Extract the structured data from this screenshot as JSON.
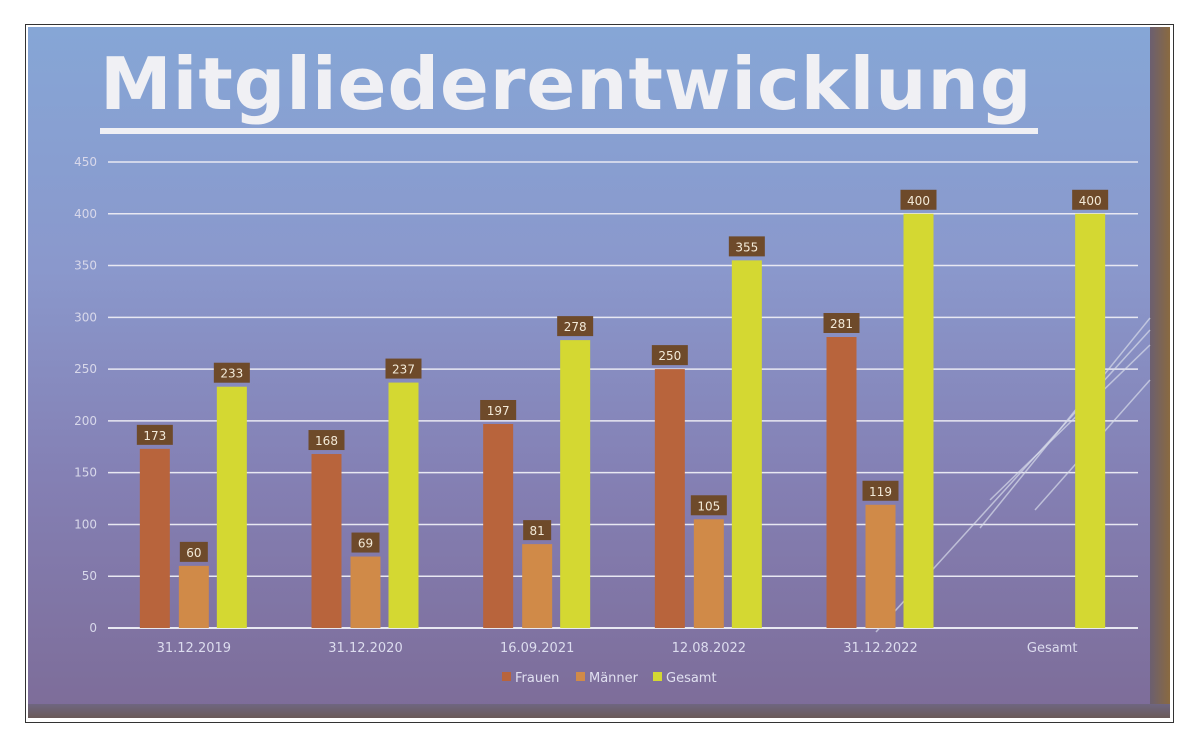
{
  "chart_data": {
    "type": "bar",
    "title": "Mitgliederentwicklung",
    "categories": [
      "31.12.2019",
      "31.12.2020",
      "16.09.2021",
      "12.08.2022",
      "31.12.2022",
      "Gesamt"
    ],
    "series": [
      {
        "name": "Frauen",
        "color": "#b8643c",
        "values": [
          173,
          168,
          197,
          250,
          281,
          null
        ]
      },
      {
        "name": "Männer",
        "color": "#d08a48",
        "values": [
          60,
          69,
          81,
          105,
          119,
          null
        ]
      },
      {
        "name": "Gesamt",
        "color": "#d4d832",
        "values": [
          233,
          237,
          278,
          355,
          400,
          400
        ]
      }
    ],
    "ylim": [
      0,
      450
    ],
    "yticks": [
      0,
      50,
      100,
      150,
      200,
      250,
      300,
      350,
      400,
      450
    ],
    "grid": true,
    "legend": "bottom",
    "data_labels": true,
    "label_box_color": "#6e4a2a"
  }
}
